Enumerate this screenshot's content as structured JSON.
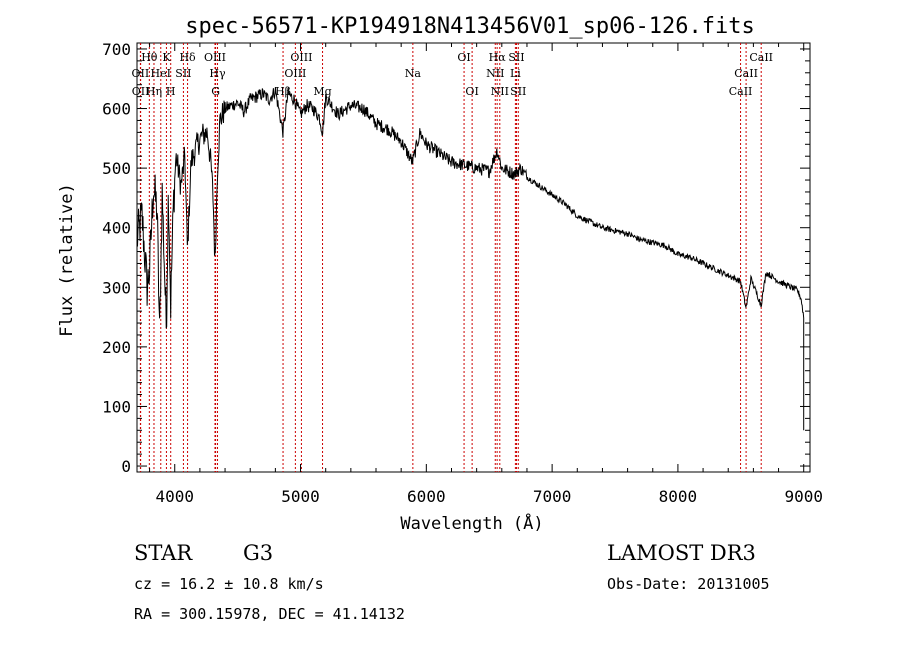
{
  "chart_data": {
    "type": "line",
    "title": "spec-56571-KP194918N413456V01_sp06-126.fits",
    "xlabel": "Wavelength (Å)",
    "ylabel": "Flux (relative)",
    "xlim": [
      3700,
      9050
    ],
    "ylim": [
      -10,
      710
    ],
    "xticks": [
      4000,
      5000,
      6000,
      7000,
      8000,
      9000
    ],
    "yticks": [
      0,
      100,
      200,
      300,
      400,
      500,
      600,
      700
    ],
    "grid": false,
    "line_color": "#000000",
    "marker_color": "#cc0000",
    "spectrum_anchors": {
      "x": [
        3700,
        3740,
        3780,
        3800,
        3830,
        3860,
        3880,
        3900,
        3933,
        3950,
        3968,
        3990,
        4010,
        4050,
        4080,
        4101,
        4130,
        4180,
        4220,
        4260,
        4290,
        4305,
        4320,
        4340,
        4360,
        4400,
        4450,
        4500,
        4550,
        4600,
        4650,
        4700,
        4750,
        4800,
        4861,
        4900,
        4950,
        5000,
        5050,
        5100,
        5150,
        5175,
        5200,
        5300,
        5400,
        5500,
        5600,
        5700,
        5800,
        5890,
        5950,
        6000,
        6100,
        6200,
        6300,
        6400,
        6500,
        6563,
        6600,
        6650,
        6700,
        6750,
        6800,
        6900,
        7000,
        7100,
        7200,
        7300,
        7400,
        7500,
        7600,
        7700,
        7800,
        7900,
        8000,
        8100,
        8200,
        8300,
        8400,
        8498,
        8542,
        8580,
        8662,
        8700,
        8800,
        8900,
        8950,
        8980,
        9000
      ],
      "y": [
        380,
        420,
        300,
        330,
        470,
        430,
        220,
        460,
        230,
        470,
        270,
        440,
        520,
        470,
        520,
        360,
        510,
        540,
        555,
        560,
        500,
        450,
        340,
        500,
        580,
        600,
        605,
        610,
        595,
        615,
        620,
        625,
        615,
        630,
        560,
        625,
        615,
        590,
        605,
        600,
        585,
        560,
        620,
        590,
        605,
        600,
        575,
        565,
        545,
        510,
        560,
        540,
        525,
        510,
        505,
        500,
        495,
        530,
        500,
        495,
        490,
        500,
        485,
        470,
        455,
        440,
        420,
        410,
        400,
        395,
        390,
        380,
        375,
        370,
        355,
        350,
        340,
        330,
        320,
        310,
        265,
        315,
        270,
        325,
        310,
        300,
        295,
        280,
        250
      ]
    },
    "lines": [
      {
        "label": "OII",
        "x": 3727,
        "row": 2
      },
      {
        "label": "OII",
        "x": 3729,
        "row": 3
      },
      {
        "label": "Hθ",
        "x": 3798,
        "row": 1
      },
      {
        "label": "Hη",
        "x": 3835,
        "row": 3
      },
      {
        "label": "HeI",
        "x": 3889,
        "row": 2
      },
      {
        "label": "K",
        "x": 3934,
        "row": 1
      },
      {
        "label": "H",
        "x": 3968,
        "row": 3
      },
      {
        "label": "SII",
        "x": 4069,
        "row": 2
      },
      {
        "label": "Hδ",
        "x": 4102,
        "row": 1
      },
      {
        "label": "OIII",
        "x": 4320,
        "row": 1
      },
      {
        "label": "Hγ",
        "x": 4340,
        "row": 2
      },
      {
        "label": "G",
        "x": 4325,
        "row": 3
      },
      {
        "label": "Hβ",
        "x": 4861,
        "row": 3
      },
      {
        "label": "OIII",
        "x": 4959,
        "row": 2
      },
      {
        "label": "OIII",
        "x": 5007,
        "row": 1
      },
      {
        "label": "Mg",
        "x": 5175,
        "row": 3
      },
      {
        "label": "Na",
        "x": 5893,
        "row": 2
      },
      {
        "label": "OI",
        "x": 6300,
        "row": 1
      },
      {
        "label": "OI",
        "x": 6364,
        "row": 3
      },
      {
        "label": "Hα",
        "x": 6563,
        "row": 1
      },
      {
        "label": "NII",
        "x": 6548,
        "row": 2
      },
      {
        "label": "NII",
        "x": 6584,
        "row": 3
      },
      {
        "label": "SII",
        "x": 6717,
        "row": 1
      },
      {
        "label": "Li",
        "x": 6708,
        "row": 2
      },
      {
        "label": "SII",
        "x": 6731,
        "row": 3
      },
      {
        "label": "CaII",
        "x": 8662,
        "row": 1
      },
      {
        "label": "CaII",
        "x": 8542,
        "row": 2
      },
      {
        "label": "CaII",
        "x": 8498,
        "row": 3
      }
    ]
  },
  "info": {
    "object_class": "STAR",
    "subclass": "G3",
    "survey": "LAMOST DR3",
    "cz": "cz = 16.2 ± 10.8 km/s",
    "obs_date": "Obs-Date: 20131005",
    "coords": "RA = 300.15978, DEC =  41.14132"
  }
}
